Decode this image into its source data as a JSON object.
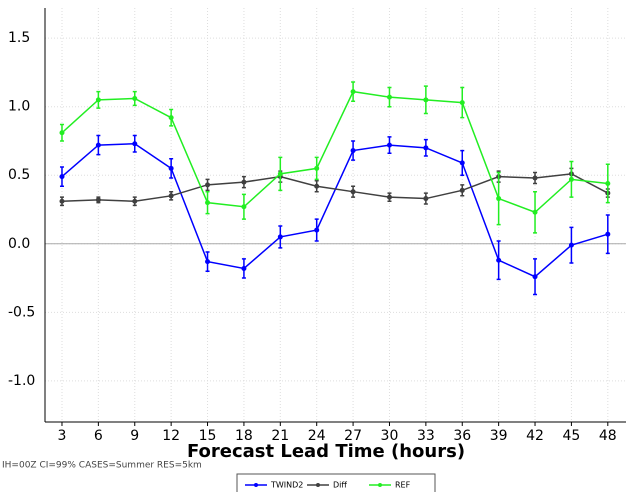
{
  "chart_data": {
    "type": "line",
    "xlabel": "Forecast Lead Time (hours)",
    "subtitle": "IH=00Z CI=99% CASES=Summer RES=5km",
    "x": [
      3,
      6,
      9,
      12,
      15,
      18,
      21,
      24,
      27,
      30,
      33,
      36,
      39,
      42,
      45,
      48
    ],
    "xlim": [
      1.6,
      49.5
    ],
    "xticks": [
      3,
      6,
      9,
      12,
      15,
      18,
      21,
      24,
      27,
      30,
      33,
      36,
      39,
      42,
      45,
      48
    ],
    "ylim": [
      -1.3,
      1.72
    ],
    "yticks": [
      {
        "value": -1,
        "label": "-1.0"
      },
      -0.5,
      {
        "value": 0,
        "label": "0.0"
      },
      0.5,
      {
        "value": 1,
        "label": "1.0"
      },
      1.5
    ],
    "hline": 0,
    "grid": true,
    "legend": "bottom",
    "series": [
      {
        "name": "TWIND2",
        "color": "#0000ff",
        "values": [
          0.49,
          0.72,
          0.73,
          0.55,
          -0.13,
          -0.18,
          0.05,
          0.1,
          0.68,
          0.72,
          0.7,
          0.59,
          -0.12,
          -0.24,
          -0.01,
          0.07
        ],
        "errors": [
          0.07,
          0.07,
          0.06,
          0.07,
          0.07,
          0.07,
          0.08,
          0.08,
          0.07,
          0.06,
          0.06,
          0.09,
          0.14,
          0.13,
          0.13,
          0.14
        ]
      },
      {
        "name": "Diff",
        "color": "#404040",
        "values": [
          0.31,
          0.32,
          0.31,
          0.35,
          0.43,
          0.45,
          0.49,
          0.42,
          0.38,
          0.34,
          0.33,
          0.39,
          0.49,
          0.48,
          0.51,
          0.37
        ],
        "errors": [
          0.03,
          0.02,
          0.03,
          0.03,
          0.04,
          0.04,
          0.04,
          0.04,
          0.04,
          0.03,
          0.04,
          0.04,
          0.04,
          0.04,
          0.04,
          0.03
        ]
      },
      {
        "name": "REF",
        "color": "#22ee22",
        "values": [
          0.81,
          1.05,
          1.06,
          0.92,
          0.3,
          0.27,
          0.51,
          0.55,
          1.11,
          1.07,
          1.05,
          1.03,
          0.33,
          0.23,
          0.47,
          0.44
        ],
        "errors": [
          0.06,
          0.06,
          0.05,
          0.06,
          0.08,
          0.09,
          0.12,
          0.08,
          0.07,
          0.07,
          0.1,
          0.11,
          0.19,
          0.15,
          0.13,
          0.14
        ]
      }
    ]
  }
}
